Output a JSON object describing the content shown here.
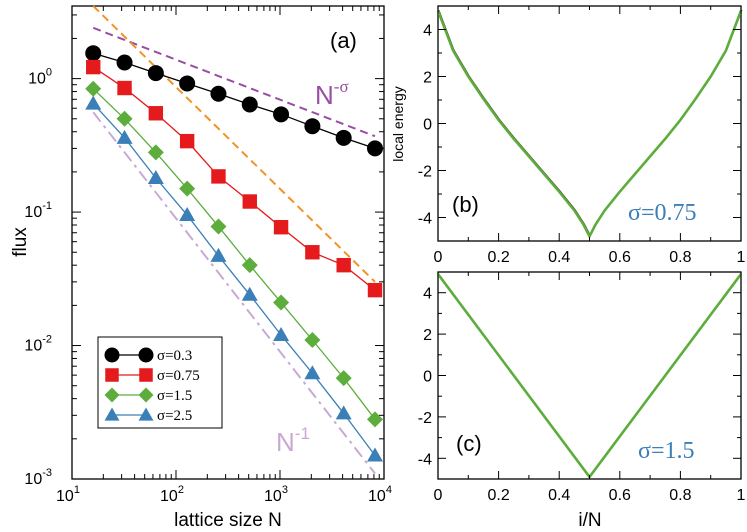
{
  "chart_data": [
    {
      "id": "a",
      "type": "line",
      "panel_label": "(a)",
      "xlabel": "lattice size N",
      "ylabel": "flux",
      "xscale": "log",
      "yscale": "log",
      "xlim": [
        10,
        10000
      ],
      "ylim": [
        0.001,
        3.5
      ],
      "x_ticks": [
        {
          "value": 10,
          "base": "10",
          "exp": "1"
        },
        {
          "value": 100,
          "base": "10",
          "exp": "2"
        },
        {
          "value": 1000,
          "base": "10",
          "exp": "3"
        },
        {
          "value": 10000,
          "base": "10",
          "exp": "4"
        }
      ],
      "y_ticks": [
        {
          "value": 0.001,
          "base": "10",
          "exp": "-3"
        },
        {
          "value": 0.01,
          "base": "10",
          "exp": "-2"
        },
        {
          "value": 0.1,
          "base": "10",
          "exp": "-1"
        },
        {
          "value": 1,
          "base": "10",
          "exp": "0"
        }
      ],
      "series": [
        {
          "name": "σ=0.3",
          "color": "#000000",
          "marker": "circle",
          "x": [
            16,
            32,
            64,
            128,
            256,
            512,
            1024,
            2048,
            4096,
            8192
          ],
          "y": [
            1.55,
            1.32,
            1.1,
            0.92,
            0.77,
            0.64,
            0.54,
            0.44,
            0.36,
            0.3
          ]
        },
        {
          "name": "σ=0.75",
          "color": "#e41a1c",
          "marker": "square",
          "x": [
            16,
            32,
            64,
            128,
            256,
            512,
            1024,
            2048,
            4096,
            8192
          ],
          "y": [
            1.22,
            0.85,
            0.55,
            0.34,
            0.185,
            0.12,
            0.077,
            0.05,
            0.04,
            0.026
          ]
        },
        {
          "name": "σ=1.5",
          "color": "#5cad3c",
          "marker": "diamond",
          "x": [
            16,
            32,
            64,
            128,
            256,
            512,
            1024,
            2048,
            4096,
            8192
          ],
          "y": [
            0.84,
            0.5,
            0.28,
            0.15,
            0.078,
            0.04,
            0.021,
            0.011,
            0.0057,
            0.0028
          ]
        },
        {
          "name": "σ=2.5",
          "color": "#3b7fb8",
          "marker": "triangle",
          "x": [
            16,
            32,
            64,
            128,
            256,
            512,
            1024,
            2048,
            4096,
            8192
          ],
          "y": [
            0.65,
            0.36,
            0.18,
            0.095,
            0.047,
            0.024,
            0.012,
            0.0062,
            0.0031,
            0.0015
          ]
        }
      ],
      "reference_lines": [
        {
          "name": "N^-σ",
          "base": "N",
          "exp": "-σ",
          "color": "#9a4da4",
          "dash": "dashed",
          "x": [
            16,
            8192
          ],
          "y": [
            2.4,
            0.37
          ]
        },
        {
          "name": "orange guide",
          "color": "#f39225",
          "dash": "dashed",
          "x": [
            16,
            8192
          ],
          "y": [
            3.5,
            0.03
          ]
        },
        {
          "name": "N^-1",
          "base": "N",
          "exp": "-1",
          "color": "#c9a9d4",
          "dash": "dashdot",
          "x": [
            16,
            8192
          ],
          "y": [
            0.56,
            0.0011
          ]
        }
      ],
      "legend": {
        "position": "bottom-left",
        "entries": [
          "σ=0.3",
          "σ=0.75",
          "σ=1.5",
          "σ=2.5"
        ]
      }
    },
    {
      "id": "b",
      "type": "line",
      "panel_label": "(b)",
      "annotation": "σ=0.75",
      "annotation_color": "#3b7fb8",
      "xlabel": "",
      "ylabel": "local energy",
      "xlim": [
        0,
        1
      ],
      "ylim": [
        -5,
        5
      ],
      "x_ticks": [
        "0",
        "0.2",
        "0.4",
        "0.6",
        "0.8",
        "1"
      ],
      "y_ticks": [
        "4",
        "2",
        "0",
        "-2",
        "-4"
      ],
      "series": [
        {
          "name": "profile",
          "color": "#5cad3c",
          "x": [
            0,
            0.05,
            0.1,
            0.15,
            0.2,
            0.25,
            0.3,
            0.35,
            0.4,
            0.45,
            0.48,
            0.5,
            0.52,
            0.55,
            0.6,
            0.65,
            0.7,
            0.75,
            0.8,
            0.85,
            0.9,
            0.95,
            1
          ],
          "y": [
            4.8,
            3.1,
            2.0,
            1.05,
            0.15,
            -0.65,
            -1.4,
            -2.15,
            -2.9,
            -3.7,
            -4.3,
            -4.8,
            -4.3,
            -3.7,
            -2.9,
            -2.15,
            -1.4,
            -0.65,
            0.15,
            1.05,
            2.0,
            3.1,
            4.8
          ]
        }
      ]
    },
    {
      "id": "c",
      "type": "line",
      "panel_label": "(c)",
      "annotation": "σ=1.5",
      "annotation_color": "#3b7fb8",
      "xlabel": "i/N",
      "ylabel": "",
      "xlim": [
        0,
        1
      ],
      "ylim": [
        -5,
        5
      ],
      "x_ticks": [
        "0",
        "0.2",
        "0.4",
        "0.6",
        "0.8",
        "1"
      ],
      "y_ticks": [
        "4",
        "2",
        "0",
        "-2",
        "-4"
      ],
      "series": [
        {
          "name": "profile",
          "color": "#5cad3c",
          "x": [
            0,
            0.5,
            1
          ],
          "y": [
            4.9,
            -4.9,
            4.9
          ]
        }
      ]
    }
  ]
}
